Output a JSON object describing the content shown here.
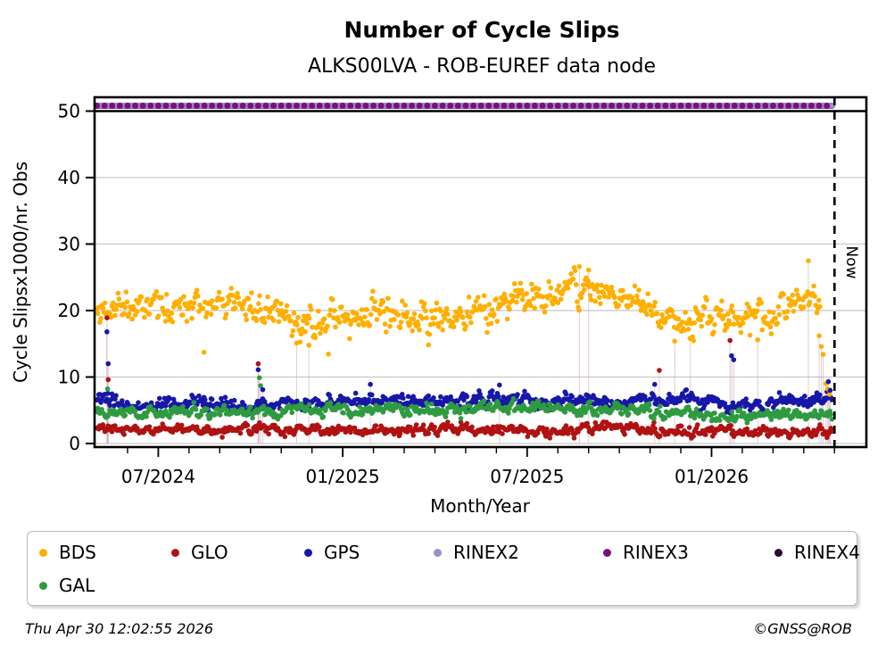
{
  "title": "Number of Cycle Slips",
  "subtitle": "ALKS00LVA - ROB-EUREF data node",
  "now_label": "Now",
  "footer": {
    "timestamp": "Thu Apr 30 12:02:55 2026",
    "credit": "©GNSS@ROB"
  },
  "colors": {
    "BDS": "#FFAF00",
    "GLO": "#B01212",
    "GPS": "#1717A8",
    "RINEX2": "#9593CB",
    "RINEX3": "#7D0F7D",
    "RINEX4": "#2B0B33",
    "GAL": "#2E9B40",
    "grid": "#C8C8C8",
    "axis": "#000000",
    "impulse": "#C9A0B4"
  },
  "legend": {
    "items": [
      {
        "label": "BDS",
        "color": "#FFAF00"
      },
      {
        "label": "GLO",
        "color": "#B01212"
      },
      {
        "label": "GPS",
        "color": "#1717A8"
      },
      {
        "label": "RINEX2",
        "color": "#9593CB"
      },
      {
        "label": "RINEX3",
        "color": "#7D0F7D"
      },
      {
        "label": "RINEX4",
        "color": "#2B0B33"
      },
      {
        "label": "GAL",
        "color": "#2E9B40"
      }
    ]
  },
  "chart_data": {
    "type": "scatter",
    "title": "Number of Cycle Slips",
    "subtitle": "ALKS00LVA - ROB-EUREF data node",
    "xlabel": "Month/Year",
    "ylabel": "Cycle Slipsx1000/nr. Obs",
    "x_start": "05/2024",
    "x_end": "05/2026",
    "x_ticks": [
      {
        "label": "07/2024",
        "month": 2
      },
      {
        "label": "01/2025",
        "month": 8
      },
      {
        "label": "07/2025",
        "month": 14
      },
      {
        "label": "01/2026",
        "month": 20
      }
    ],
    "minor_tick_every_month": 1,
    "months_total": 25,
    "ylim": [
      0,
      52
    ],
    "y_ticks": [
      0,
      10,
      20,
      30,
      40,
      50
    ],
    "grid": true,
    "now_line_month": 24.0,
    "legend_position": "bottom",
    "series": [
      {
        "name": "RINEX4",
        "kind": "flat",
        "value": 50.8,
        "step_month": 0.0329,
        "start_month": 0,
        "end_month": 23.92,
        "r": 3.3
      },
      {
        "name": "RINEX2",
        "kind": "flat",
        "value": 50.8,
        "step_month": 0.0329,
        "start_month": 0,
        "end_month": 23.92,
        "r": 3.0
      },
      {
        "name": "RINEX3",
        "kind": "flat",
        "value": 50.8,
        "step_month": 0.25,
        "start_month": 0,
        "end_month": 23.92,
        "r": 3.5
      },
      {
        "name": "BDS",
        "kind": "noisy",
        "seed": 11,
        "sigma": 1.3,
        "ar": 0.5,
        "step_month": 0.0329,
        "start_month": 0,
        "end_month": 23.55,
        "r": 2.8,
        "min": 1.0,
        "monthly_means": [
          19.8,
          20.6,
          21.3,
          21.6,
          21.4,
          20.9,
          18.9,
          17.9,
          19.3,
          19.6,
          19.2,
          18.7,
          19.5,
          20.7,
          21.9,
          22.7,
          23.0,
          21.9,
          20.5,
          18.7,
          18.5,
          19.1,
          19.5,
          21.2,
          21.4
        ]
      },
      {
        "name": "GLO",
        "kind": "noisy",
        "seed": 44,
        "sigma": 0.4,
        "ar": 0.5,
        "step_month": 0.0329,
        "start_month": 0,
        "end_month": 23.93,
        "r": 2.8,
        "min": 0.8,
        "monthly_means": [
          2.4,
          2.1,
          2.0,
          2.1,
          2.0,
          2.5,
          2.1,
          2.0,
          1.9,
          2.0,
          2.1,
          2.2,
          2.3,
          2.1,
          1.9,
          1.8,
          2.4,
          2.6,
          2.1,
          1.9,
          1.8,
          1.9,
          1.8,
          1.7,
          1.6
        ]
      },
      {
        "name": "GPS",
        "kind": "noisy",
        "seed": 33,
        "sigma": 0.55,
        "ar": 0.5,
        "step_month": 0.0329,
        "start_month": 0,
        "end_month": 23.93,
        "r": 2.8,
        "min": 1.0,
        "monthly_means": [
          6.6,
          5.6,
          5.7,
          5.9,
          5.7,
          5.6,
          5.9,
          6.1,
          6.3,
          6.4,
          6.6,
          6.4,
          6.6,
          6.8,
          6.6,
          6.4,
          6.3,
          6.2,
          6.4,
          6.7,
          6.3,
          6.0,
          6.2,
          6.3,
          6.5
        ]
      },
      {
        "name": "GAL",
        "kind": "noisy",
        "seed": 22,
        "sigma": 0.45,
        "ar": 0.5,
        "step_month": 0.0329,
        "start_month": 0,
        "end_month": 23.93,
        "r": 2.8,
        "min": 1.0,
        "monthly_means": [
          5.3,
          4.7,
          4.6,
          4.8,
          4.7,
          4.6,
          4.8,
          5.0,
          5.1,
          5.2,
          5.1,
          5.0,
          5.2,
          5.4,
          5.3,
          5.2,
          5.1,
          5.2,
          5.0,
          4.4,
          4.3,
          4.2,
          4.3,
          4.4,
          4.3
        ]
      }
    ],
    "outliers": [
      {
        "m": 0.33,
        "s": "GLO",
        "v": 18.9
      },
      {
        "m": 0.33,
        "s": "GPS",
        "v": 16.8
      },
      {
        "m": 0.37,
        "s": "GPS",
        "v": 12.0
      },
      {
        "m": 0.37,
        "s": "GLO",
        "v": 9.6
      },
      {
        "m": 0.35,
        "s": "GAL",
        "v": 8.2
      },
      {
        "m": 5.25,
        "s": "GLO",
        "v": 12.0
      },
      {
        "m": 5.25,
        "s": "GPS",
        "v": 11.1
      },
      {
        "m": 5.29,
        "s": "GAL",
        "v": 9.9
      },
      {
        "m": 5.33,
        "s": "GAL",
        "v": 8.7
      },
      {
        "m": 5.4,
        "s": "GPS",
        "v": 8.1
      },
      {
        "m": 6.5,
        "s": "BDS",
        "v": 15.1
      },
      {
        "m": 6.9,
        "s": "BDS",
        "v": 14.8
      },
      {
        "m": 8.9,
        "s": "GPS",
        "v": 8.9
      },
      {
        "m": 13.1,
        "s": "GPS",
        "v": 8.8
      },
      {
        "m": 15.7,
        "s": "BDS",
        "v": 26.6
      },
      {
        "m": 16.0,
        "s": "BDS",
        "v": 26.1
      },
      {
        "m": 18.15,
        "s": "GPS",
        "v": 8.9
      },
      {
        "m": 18.3,
        "s": "GLO",
        "v": 11.0
      },
      {
        "m": 18.8,
        "s": "BDS",
        "v": 15.4
      },
      {
        "m": 19.3,
        "s": "BDS",
        "v": 15.8
      },
      {
        "m": 20.6,
        "s": "GLO",
        "v": 15.5
      },
      {
        "m": 20.65,
        "s": "GPS",
        "v": 13.2
      },
      {
        "m": 20.72,
        "s": "GPS",
        "v": 12.6
      },
      {
        "m": 21.5,
        "s": "BDS",
        "v": 15.6
      },
      {
        "m": 23.15,
        "s": "BDS",
        "v": 27.5
      },
      {
        "m": 23.5,
        "s": "BDS",
        "v": 16.2
      },
      {
        "m": 23.57,
        "s": "BDS",
        "v": 14.6
      },
      {
        "m": 23.63,
        "s": "BDS",
        "v": 13.4
      },
      {
        "m": 23.72,
        "s": "BDS",
        "v": 9.0
      },
      {
        "m": 23.78,
        "s": "BDS",
        "v": 8.2
      },
      {
        "m": 23.84,
        "s": "BDS",
        "v": 7.4
      },
      {
        "m": 23.8,
        "s": "GPS",
        "v": 9.3
      },
      {
        "m": 23.86,
        "s": "GPS",
        "v": 8.0
      }
    ]
  }
}
